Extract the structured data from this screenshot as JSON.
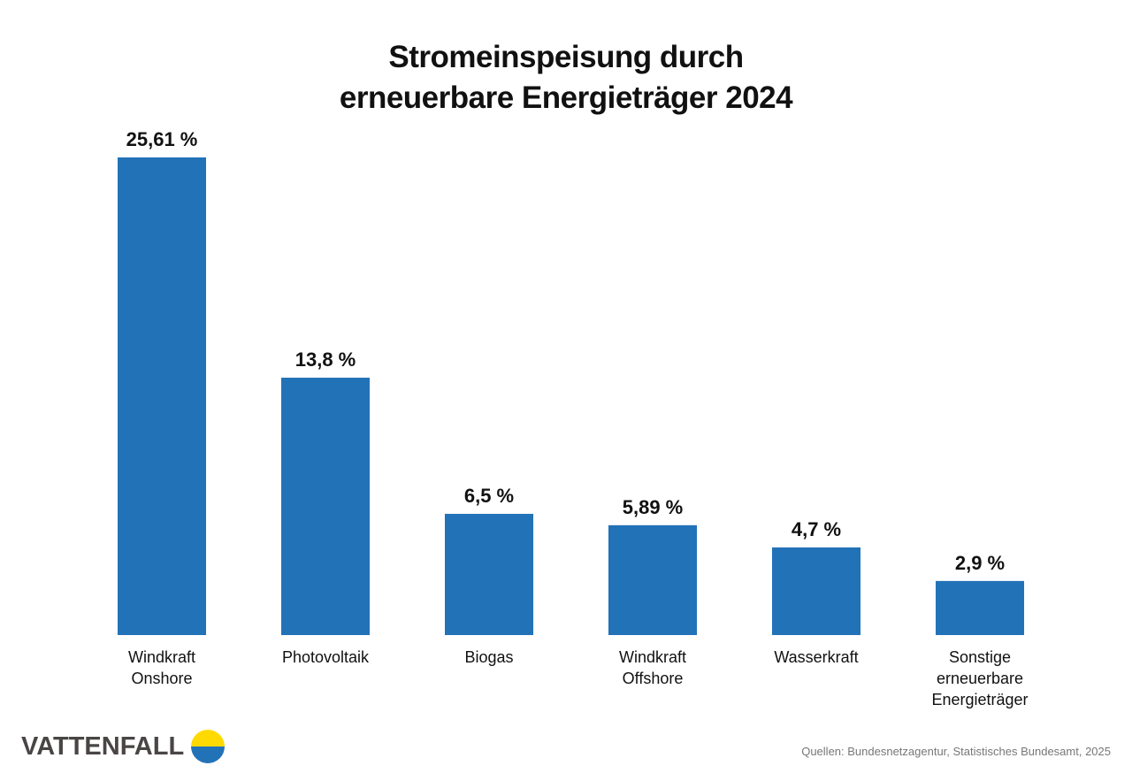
{
  "chart_data": {
    "type": "bar",
    "title_lines": [
      "Stromeinspeisung durch",
      "erneuerbare Energieträger 2024"
    ],
    "categories": [
      [
        "Windkraft",
        "Onshore"
      ],
      [
        "Photovoltaik"
      ],
      [
        "Biogas"
      ],
      [
        "Windkraft",
        "Offshore"
      ],
      [
        "Wasserkraft"
      ],
      [
        "Sonstige",
        "erneuerbare",
        "Energieträger"
      ]
    ],
    "values": [
      25.61,
      13.8,
      6.5,
      5.89,
      4.7,
      2.9
    ],
    "data_labels": [
      "25,61 %",
      "13,8 %",
      "6,5 %",
      "5,89 %",
      "4,7 %",
      "2,9 %"
    ],
    "unit": "%",
    "ylim": [
      0,
      25.61
    ],
    "grid": false,
    "bar_color": "#2272b8"
  },
  "footer": {
    "logo_text": "VATTENFALL",
    "logo_colors": [
      "#ffda00",
      "#2272b8"
    ],
    "source": "Quellen: Bundesnetzagentur, Statistisches Bundesamt, 2025"
  }
}
